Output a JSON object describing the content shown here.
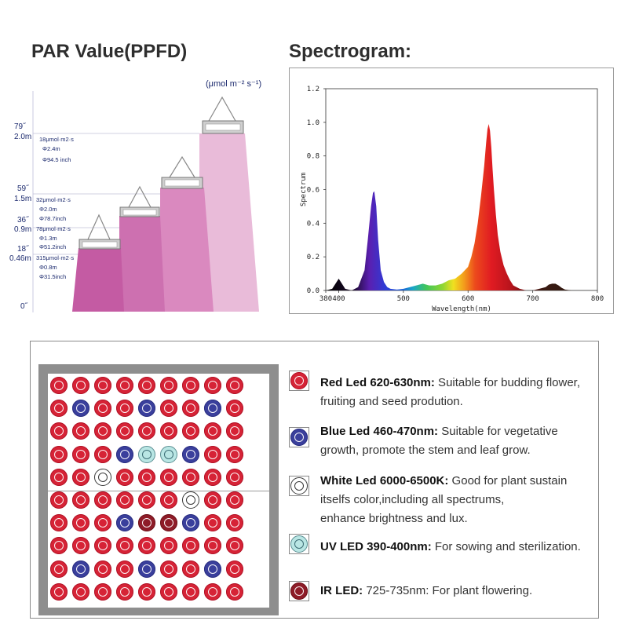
{
  "par": {
    "title": "PAR Value(PPFD)",
    "unit": "(μmol m⁻² s⁻¹)",
    "heights": [
      {
        "inch": "79˝",
        "m": "2.0m"
      },
      {
        "inch": "59˝",
        "m": "1.5m"
      },
      {
        "inch": "36˝",
        "m": "0.9m"
      },
      {
        "inch": "18˝",
        "m": "0.46m"
      },
      {
        "inch": "0˝",
        "m": ""
      }
    ],
    "annotations": [
      {
        "ppfd": "18μmol·m2·s",
        "dia_m": "Φ2.4m",
        "dia_in": "Φ94.5 inch"
      },
      {
        "ppfd": "32μmol·m2·s",
        "dia_m": "Φ2.0m",
        "dia_in": "Φ78.7inch"
      },
      {
        "ppfd": "78μmol·m2·s",
        "dia_m": "Φ1.3m",
        "dia_in": "Φ51.2inch"
      },
      {
        "ppfd": "315μmol·m2·s",
        "dia_m": "Φ0.8m",
        "dia_in": "Φ31.5inch"
      }
    ]
  },
  "spectrogram": {
    "title": "Spectrogram:"
  },
  "chart_data": {
    "type": "area",
    "title": "Spectrogram:",
    "xlabel": "Wavelength(nm)",
    "ylabel": "Spectrum",
    "xlim": [
      380,
      800
    ],
    "ylim": [
      0.0,
      1.2
    ],
    "xticks": [
      380,
      400,
      500,
      600,
      700,
      800
    ],
    "yticks": [
      0.0,
      0.2,
      0.4,
      0.6,
      0.8,
      1.0,
      1.2
    ],
    "series": [
      {
        "name": "Spectrum",
        "x": [
          380,
          390,
          395,
          400,
          405,
          410,
          420,
          430,
          440,
          445,
          450,
          453,
          455,
          458,
          461,
          465,
          470,
          475,
          480,
          490,
          500,
          510,
          520,
          530,
          540,
          550,
          560,
          570,
          580,
          590,
          600,
          605,
          610,
          615,
          620,
          625,
          628,
          630,
          632,
          634,
          636,
          638,
          640,
          643,
          646,
          650,
          655,
          660,
          665,
          670,
          680,
          690,
          700,
          710,
          720,
          725,
          730,
          735,
          740,
          745,
          750,
          760
        ],
        "y": [
          0.0,
          0.01,
          0.04,
          0.07,
          0.04,
          0.01,
          0.0,
          0.02,
          0.12,
          0.3,
          0.5,
          0.58,
          0.59,
          0.5,
          0.3,
          0.12,
          0.05,
          0.02,
          0.01,
          0.005,
          0.01,
          0.02,
          0.03,
          0.04,
          0.03,
          0.03,
          0.04,
          0.06,
          0.07,
          0.1,
          0.14,
          0.2,
          0.28,
          0.4,
          0.56,
          0.74,
          0.88,
          0.96,
          0.99,
          0.95,
          0.85,
          0.72,
          0.6,
          0.45,
          0.33,
          0.23,
          0.15,
          0.1,
          0.06,
          0.03,
          0.01,
          0.0,
          0.0,
          0.01,
          0.02,
          0.035,
          0.04,
          0.04,
          0.03,
          0.015,
          0.005,
          0.0
        ]
      }
    ]
  },
  "led_grid": {
    "rows": [
      [
        "red",
        "red",
        "red",
        "red",
        "red",
        "red",
        "red",
        "red",
        "red"
      ],
      [
        "red",
        "blue",
        "red",
        "red",
        "blue",
        "red",
        "red",
        "blue",
        "red"
      ],
      [
        "red",
        "red",
        "red",
        "red",
        "red",
        "red",
        "red",
        "red",
        "red"
      ],
      [
        "red",
        "red",
        "red",
        "blue",
        "uv",
        "uv",
        "blue",
        "red",
        "red"
      ],
      [
        "red",
        "red",
        "white",
        "red",
        "red",
        "red",
        "red",
        "red",
        "red"
      ],
      [
        "red",
        "red",
        "red",
        "red",
        "red",
        "red",
        "white",
        "red",
        "red"
      ],
      [
        "red",
        "red",
        "red",
        "blue",
        "ir",
        "ir",
        "blue",
        "red",
        "red"
      ],
      [
        "red",
        "red",
        "red",
        "red",
        "red",
        "red",
        "red",
        "red",
        "red"
      ],
      [
        "red",
        "blue",
        "red",
        "red",
        "blue",
        "red",
        "red",
        "blue",
        "red"
      ],
      [
        "red",
        "red",
        "red",
        "red",
        "red",
        "red",
        "red",
        "red",
        "red"
      ]
    ]
  },
  "legend": [
    {
      "type": "red",
      "bold": "Red Led 620-630nm:",
      "line1": " Suitable for budding flower,",
      "line2": "fruiting and seed prodution.",
      "line3": ""
    },
    {
      "type": "blue",
      "bold": "Blue Led 460-470nm:",
      "line1": " Suitable for vegetative",
      "line2": "growth, promote the stem and leaf grow.",
      "line3": ""
    },
    {
      "type": "white",
      "bold": "White Led 6000-6500K:",
      "line1": " Good for plant sustain",
      "line2": "itselfs color,including all spectrums,",
      "line3": "enhance brightness and lux."
    },
    {
      "type": "uv",
      "bold": "UV LED 390-400nm:",
      "line1": " For sowing and sterilization.",
      "line2": "",
      "line3": ""
    },
    {
      "type": "ir",
      "bold": "IR LED:",
      "line1": " 725-735nm: For plant flowering.",
      "line2": "",
      "line3": ""
    }
  ],
  "colors": {
    "tier1": "#e8b7d6",
    "tier2": "#d983bb",
    "tier3": "#cc6aac",
    "tier4": "#c2559f",
    "red_led": "#d62336",
    "blue_led": "#3a3f9c",
    "uv_led": "#b9e6e4",
    "ir_led": "#8e1c28"
  }
}
